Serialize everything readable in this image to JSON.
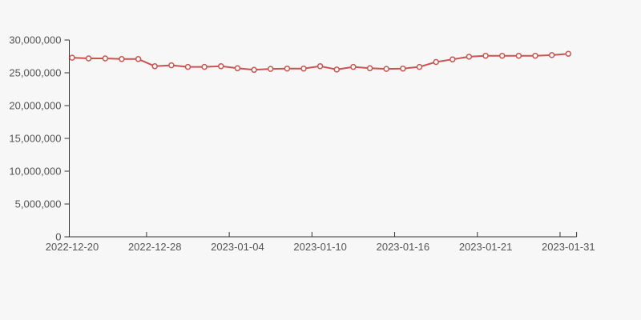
{
  "page": {
    "background_color": "#f7f7f7"
  },
  "chart_data": {
    "type": "line",
    "title": "",
    "legend": false,
    "grid": false,
    "num_points": 31,
    "x_tick_labels": [
      "2022-12-20",
      "2022-12-28",
      "2023-01-04",
      "2023-01-10",
      "2023-01-16",
      "2023-01-21",
      "2023-01-31"
    ],
    "x_tick_indices": [
      0,
      5,
      10,
      15,
      20,
      25,
      30
    ],
    "values": [
      27300000,
      27200000,
      27200000,
      27100000,
      27100000,
      26000000,
      26150000,
      25900000,
      25900000,
      26000000,
      25700000,
      25450000,
      25600000,
      25650000,
      25650000,
      26000000,
      25500000,
      25900000,
      25700000,
      25600000,
      25650000,
      25900000,
      26650000,
      27050000,
      27450000,
      27600000,
      27600000,
      27600000,
      27600000,
      27700000,
      27900000
    ],
    "ylim": [
      0,
      30000000
    ],
    "y_ticks": [
      0,
      5000000,
      10000000,
      15000000,
      20000000,
      25000000,
      30000000
    ],
    "y_tick_labels": [
      "0",
      "5,000,000",
      "10,000,000",
      "15,000,000",
      "20,000,000",
      "25,000,000",
      "30,000,000"
    ],
    "xlabel": "",
    "ylabel": "",
    "colors": {
      "line": "#c9534f",
      "marker_fill": "#ffffff",
      "marker_stroke": "#c9534f",
      "axis": "#333333",
      "label": "#555555"
    }
  }
}
